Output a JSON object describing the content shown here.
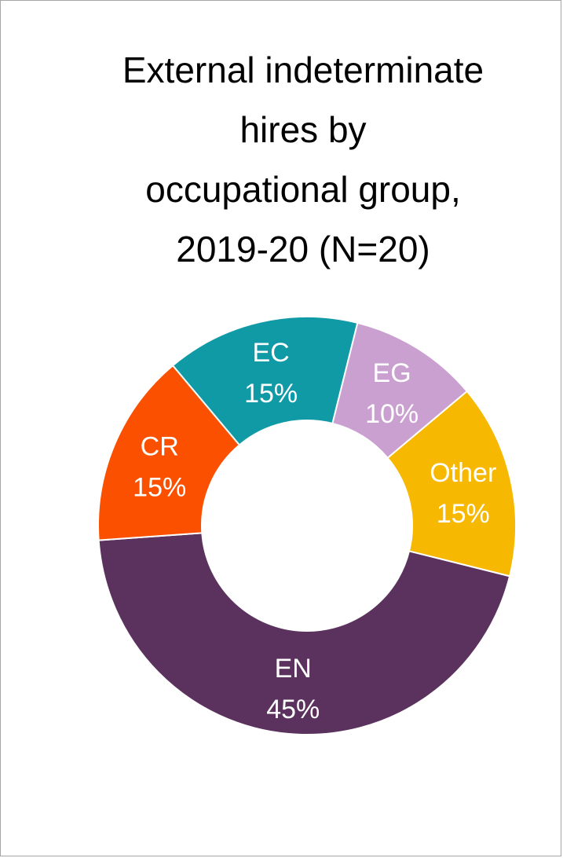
{
  "chart_data": {
    "type": "pie",
    "title_lines": [
      "External indeterminate",
      "hires by",
      "occupational group,",
      "2019-20 (N=20)"
    ],
    "slices": [
      {
        "name": "EC",
        "value": 15,
        "label": "15%",
        "color": "#0f9aa6"
      },
      {
        "name": "EG",
        "value": 10,
        "label": "10%",
        "color": "#c9a0d0"
      },
      {
        "name": "Other",
        "value": 15,
        "label": "15%",
        "color": "#f6b800"
      },
      {
        "name": "EN",
        "value": 45,
        "label": "45%",
        "color": "#5b325e"
      },
      {
        "name": "CR",
        "value": 15,
        "label": "15%",
        "color": "#fb5000"
      }
    ],
    "donut": true,
    "legend": "none"
  }
}
